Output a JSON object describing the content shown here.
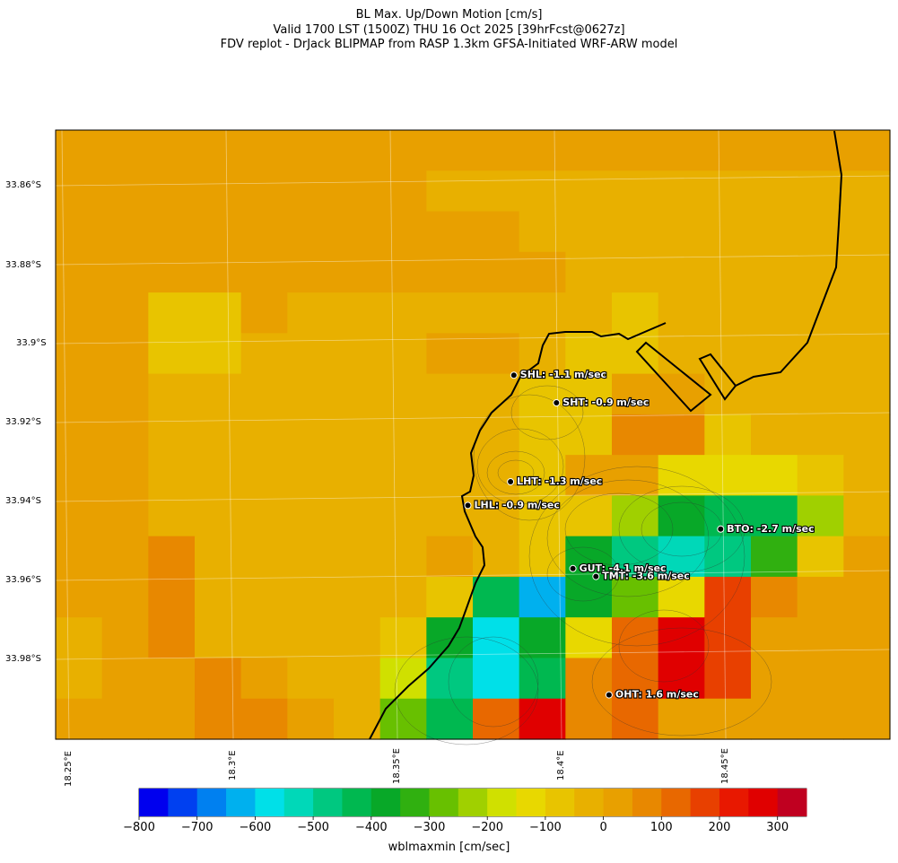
{
  "titles": {
    "line1": "BL Max. Up/Down Motion [cm/s]",
    "line2": "Valid 1700 LST (1500Z) THU 16 Oct 2025 [39hrFcst@0627z]",
    "line3": "FDV replot - DrJack BLIPMAP from RASP 1.3km GFSA-Initiated WRF-ARW model"
  },
  "axes": {
    "lat_labels": [
      "33.86°S",
      "33.88°S",
      "33.9°S",
      "33.92°S",
      "33.94°S",
      "33.96°S",
      "33.98°S"
    ],
    "lon_labels": [
      "18.25°E",
      "18.3°E",
      "18.35°E",
      "18.4°E",
      "18.45°E"
    ]
  },
  "colorbar": {
    "label": "wblmaxmin [cm/sec]",
    "tick_labels": [
      "−800",
      "−700",
      "−600",
      "−500",
      "−400",
      "−300",
      "−200",
      "−100",
      "0",
      "100",
      "200",
      "300"
    ],
    "tick_values": [
      -800,
      -700,
      -600,
      -500,
      -400,
      -300,
      -200,
      -100,
      0,
      100,
      200,
      300
    ],
    "min": -800,
    "max": 350,
    "step": 50,
    "colors": [
      "#0000ee",
      "#0040f0",
      "#0080f0",
      "#00b0ee",
      "#00e0e8",
      "#00d8b8",
      "#00c880",
      "#00b850",
      "#08a828",
      "#30b010",
      "#68c000",
      "#a0d000",
      "#d0e000",
      "#e8d800",
      "#e8c400",
      "#e8b000",
      "#e8a000",
      "#e88800",
      "#e86800",
      "#e84000",
      "#e81800",
      "#e00000",
      "#c00020"
    ]
  },
  "chart_data": {
    "type": "heatmap",
    "title": "BL Max. Up/Down Motion [cm/s]",
    "variable": "wblmaxmin [cm/sec]",
    "lat_range": [
      -33.995,
      -33.845
    ],
    "lon_range": [
      18.245,
      18.475
    ],
    "grid_lat_step": 0.02,
    "grid_lon_step": 0.05,
    "value_rows": [
      [
        20,
        20,
        20,
        20,
        20,
        20,
        20,
        20,
        20,
        20,
        20,
        20,
        20,
        20,
        20,
        20,
        20,
        20
      ],
      [
        20,
        20,
        20,
        20,
        20,
        20,
        20,
        20,
        -30,
        -30,
        -30,
        -30,
        -30,
        -30,
        -30,
        -30,
        -30,
        -30
      ],
      [
        20,
        20,
        20,
        20,
        20,
        20,
        20,
        20,
        20,
        20,
        -30,
        -30,
        -30,
        -30,
        -30,
        -30,
        -30,
        -30
      ],
      [
        20,
        20,
        20,
        20,
        20,
        20,
        20,
        20,
        20,
        20,
        20,
        -30,
        -30,
        -30,
        -30,
        -30,
        -30,
        -30
      ],
      [
        20,
        20,
        -80,
        -80,
        20,
        -30,
        -30,
        -30,
        -30,
        -30,
        -30,
        -30,
        -80,
        -30,
        -30,
        -30,
        -30,
        -30
      ],
      [
        20,
        20,
        -80,
        -80,
        -30,
        -30,
        -30,
        -30,
        20,
        20,
        -30,
        -80,
        -80,
        -30,
        -30,
        -30,
        -30,
        -30
      ],
      [
        20,
        20,
        -30,
        -30,
        -30,
        -30,
        -30,
        -30,
        -30,
        -30,
        -80,
        -80,
        20,
        20,
        -30,
        -30,
        -30,
        -30
      ],
      [
        20,
        20,
        -30,
        -30,
        -30,
        -30,
        -30,
        -30,
        -30,
        -30,
        -80,
        -80,
        70,
        70,
        -80,
        -30,
        -30,
        -30
      ],
      [
        20,
        20,
        -30,
        -30,
        -30,
        -30,
        -30,
        -30,
        -30,
        -30,
        -80,
        20,
        20,
        -130,
        -130,
        -130,
        -80,
        -30
      ],
      [
        20,
        20,
        -30,
        -30,
        -30,
        -30,
        -30,
        -30,
        -30,
        -30,
        -80,
        -80,
        -230,
        -380,
        -430,
        -430,
        -230,
        -30
      ],
      [
        20,
        20,
        70,
        -30,
        -30,
        -30,
        -30,
        -30,
        20,
        -30,
        -80,
        -380,
        -480,
        -530,
        -480,
        -330,
        -80,
        20
      ],
      [
        20,
        20,
        70,
        -30,
        -30,
        -30,
        -30,
        -30,
        -80,
        -430,
        -630,
        -380,
        -280,
        -130,
        170,
        70,
        20,
        20
      ],
      [
        -30,
        20,
        70,
        -30,
        -30,
        -30,
        -30,
        -80,
        -380,
        -580,
        -380,
        -130,
        120,
        270,
        170,
        20,
        20,
        20
      ],
      [
        -30,
        20,
        20,
        70,
        20,
        -30,
        -30,
        -180,
        -480,
        -580,
        -430,
        70,
        120,
        270,
        170,
        20,
        20,
        20
      ],
      [
        20,
        20,
        20,
        70,
        70,
        20,
        -30,
        -280,
        -430,
        120,
        270,
        70,
        120,
        20,
        20,
        20,
        20,
        20
      ]
    ],
    "stations": [
      {
        "code": "SHL",
        "label": "SHL: -1.1 m/sec",
        "lat": -33.908,
        "lon": 18.386,
        "value_m_s": -1.1
      },
      {
        "code": "SHT",
        "label": "SHT: -0.9 m/sec",
        "lat": -33.915,
        "lon": 18.399,
        "value_m_s": -0.9
      },
      {
        "code": "LHT",
        "label": "LHT: -1.3 m/sec",
        "lat": -33.935,
        "lon": 18.385,
        "value_m_s": -1.3
      },
      {
        "code": "LHL",
        "label": "LHL: -0.9 m/sec",
        "lat": -33.941,
        "lon": 18.372,
        "value_m_s": -0.9
      },
      {
        "code": "BTO",
        "label": "BTO: -2.7 m/sec",
        "lat": -33.947,
        "lon": 18.449,
        "value_m_s": -2.7
      },
      {
        "code": "GUT",
        "label": "GUT: -4.1 m/sec",
        "lat": -33.957,
        "lon": 18.404,
        "value_m_s": -4.1
      },
      {
        "code": "TMT",
        "label": "TMT: -3.6 m/sec",
        "lat": -33.959,
        "lon": 18.411,
        "value_m_s": -3.6
      },
      {
        "code": "OHT",
        "label": "OHT: 1.6 m/sec",
        "lat": -33.989,
        "lon": 18.415,
        "value_m_s": 1.6
      }
    ]
  }
}
